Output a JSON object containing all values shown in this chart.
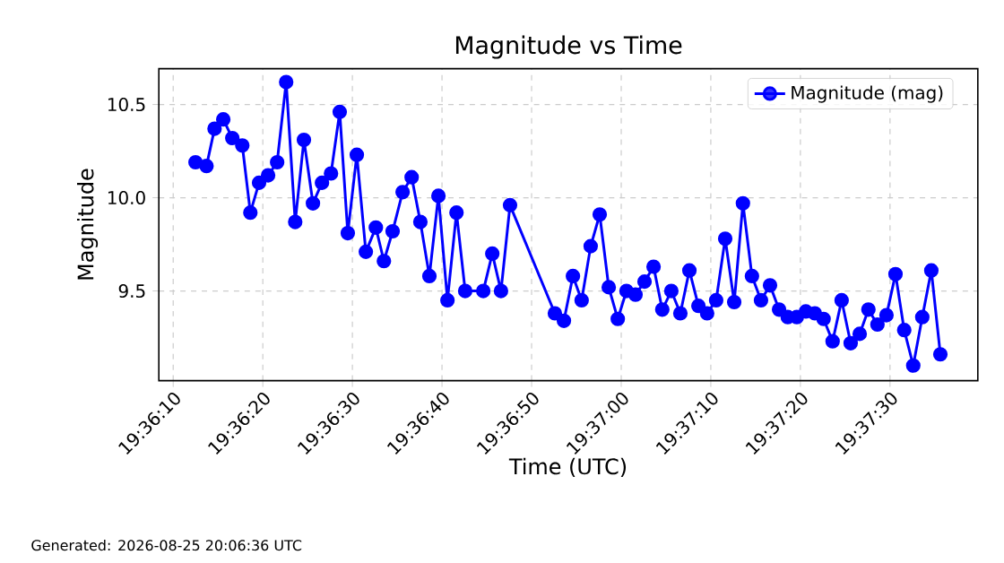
{
  "chart_data": {
    "type": "line",
    "title": "Magnitude vs Time",
    "xlabel": "Time (UTC)",
    "ylabel": "Magnitude",
    "annotations": [
      "Generated: 2026-08-25 20:06:36 UTC"
    ],
    "x": [
      19.60347,
      19.60381,
      19.60406,
      19.60433,
      19.60461,
      19.60492,
      19.60517,
      19.60544,
      19.60572,
      19.606,
      19.60628,
      19.60656,
      19.60683,
      19.60711,
      19.60739,
      19.60767,
      19.60794,
      19.60819,
      19.60847,
      19.60875,
      19.60906,
      19.60931,
      19.60958,
      19.60989,
      19.61017,
      19.61044,
      19.61072,
      19.611,
      19.61128,
      19.61156,
      19.61183,
      19.61239,
      19.61267,
      19.61294,
      19.61322,
      19.61461,
      19.61489,
      19.61517,
      19.61544,
      19.61572,
      19.616,
      19.61628,
      19.61656,
      19.61683,
      19.61711,
      19.61739,
      19.61767,
      19.61794,
      19.61822,
      19.6185,
      19.61878,
      19.61906,
      19.61933,
      19.61961,
      19.61989,
      19.62017,
      19.62044,
      19.62072,
      19.621,
      19.62128,
      19.62156,
      19.62183,
      19.62211,
      19.62239,
      19.62267,
      19.62294,
      19.62322,
      19.6235,
      19.62378,
      19.62406,
      19.62433,
      19.62461,
      19.62489,
      19.62517,
      19.62544,
      19.62572,
      19.626,
      19.62628,
      19.62656
    ],
    "series": [
      {
        "name": "Magnitude (mag)",
        "color": "#0000ff",
        "values": [
          10.19,
          10.17,
          10.37,
          10.42,
          10.32,
          10.28,
          9.92,
          10.08,
          10.12,
          10.19,
          10.62,
          9.87,
          10.31,
          9.97,
          10.08,
          10.13,
          10.46,
          9.81,
          10.23,
          9.71,
          9.84,
          9.66,
          9.82,
          10.03,
          10.11,
          9.87,
          9.58,
          10.01,
          9.45,
          9.92,
          9.5,
          9.5,
          9.7,
          9.5,
          9.96,
          9.38,
          9.34,
          9.58,
          9.45,
          9.74,
          9.91,
          9.52,
          9.35,
          9.5,
          9.48,
          9.55,
          9.63,
          9.4,
          9.5,
          9.38,
          9.61,
          9.42,
          9.38,
          9.45,
          9.78,
          9.44,
          9.97,
          9.58,
          9.45,
          9.53,
          9.4,
          9.36,
          9.36,
          9.39,
          9.38,
          9.35,
          9.23,
          9.45,
          9.22,
          9.27,
          9.4,
          9.32,
          9.37,
          9.59,
          9.29,
          9.1,
          9.36,
          9.61,
          9.16
        ]
      }
    ],
    "xlim": [
      19.602333,
      19.627722
    ],
    "xticks": [
      {
        "value": 19.602778,
        "label": "19:36:10"
      },
      {
        "value": 19.605556,
        "label": "19:36:20"
      },
      {
        "value": 19.608333,
        "label": "19:36:30"
      },
      {
        "value": 19.611111,
        "label": "19:36:40"
      },
      {
        "value": 19.613889,
        "label": "19:36:50"
      },
      {
        "value": 19.616667,
        "label": "19:37:00"
      },
      {
        "value": 19.619444,
        "label": "19:37:10"
      },
      {
        "value": 19.622222,
        "label": "19:37:20"
      },
      {
        "value": 19.625,
        "label": "19:37:30"
      }
    ],
    "ylim": [
      9.019,
      10.692
    ],
    "yticks": [
      9.5,
      {
        "value": 10.0,
        "label": "10.0"
      },
      10.5
    ],
    "grid": true,
    "legend": "top right",
    "marker": "circle",
    "line_style": "solid"
  }
}
